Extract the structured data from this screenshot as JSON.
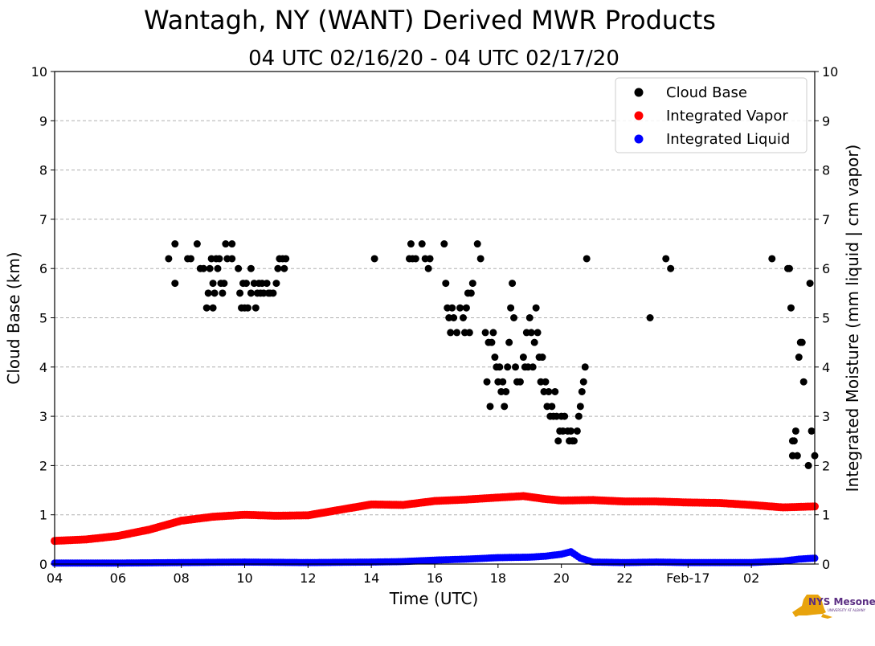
{
  "chart_data": {
    "type": "scatter",
    "title": "Wantagh, NY (WANT) Derived MWR Products",
    "subtitle": "04 UTC 02/16/20 - 04 UTC 02/17/20",
    "xlabel": "Time (UTC)",
    "ylabel_left": "Cloud Base (km)",
    "ylabel_right": "Integrated Moisture (mm liquid | cm vapor)",
    "xlim": [
      0,
      24
    ],
    "ylim": [
      0,
      10
    ],
    "grid": true,
    "legend_position": "top-right",
    "x_ticks": [
      {
        "value": 0,
        "label": "04"
      },
      {
        "value": 2,
        "label": "06"
      },
      {
        "value": 4,
        "label": "08"
      },
      {
        "value": 6,
        "label": "10"
      },
      {
        "value": 8,
        "label": "12"
      },
      {
        "value": 10,
        "label": "14"
      },
      {
        "value": 12,
        "label": "16"
      },
      {
        "value": 14,
        "label": "18"
      },
      {
        "value": 16,
        "label": "20"
      },
      {
        "value": 18,
        "label": "22"
      },
      {
        "value": 20,
        "label": "Feb-17"
      },
      {
        "value": 22,
        "label": "02"
      }
    ],
    "y_ticks": [
      {
        "value": 0,
        "label": "0"
      },
      {
        "value": 1,
        "label": "1"
      },
      {
        "value": 2,
        "label": "2"
      },
      {
        "value": 3,
        "label": "3"
      },
      {
        "value": 4,
        "label": "4"
      },
      {
        "value": 5,
        "label": "5"
      },
      {
        "value": 6,
        "label": "6"
      },
      {
        "value": 7,
        "label": "7"
      },
      {
        "value": 8,
        "label": "8"
      },
      {
        "value": 9,
        "label": "9"
      },
      {
        "value": 10,
        "label": "10"
      }
    ],
    "series": [
      {
        "name": "Cloud Base",
        "color": "#000000",
        "points": [
          [
            3.6,
            6.2
          ],
          [
            3.8,
            6.5
          ],
          [
            3.8,
            5.7
          ],
          [
            4.2,
            6.2
          ],
          [
            4.3,
            6.2
          ],
          [
            4.5,
            6.5
          ],
          [
            4.6,
            6.0
          ],
          [
            4.7,
            6.0
          ],
          [
            4.8,
            5.2
          ],
          [
            4.85,
            5.5
          ],
          [
            4.9,
            6.0
          ],
          [
            4.95,
            6.2
          ],
          [
            5.0,
            5.7
          ],
          [
            5.0,
            5.2
          ],
          [
            5.05,
            5.5
          ],
          [
            5.1,
            6.2
          ],
          [
            5.15,
            6.0
          ],
          [
            5.2,
            6.2
          ],
          [
            5.25,
            5.7
          ],
          [
            5.3,
            5.5
          ],
          [
            5.35,
            5.7
          ],
          [
            5.4,
            6.5
          ],
          [
            5.45,
            6.2
          ],
          [
            5.6,
            6.5
          ],
          [
            5.6,
            6.2
          ],
          [
            5.8,
            6.0
          ],
          [
            5.85,
            5.5
          ],
          [
            5.9,
            5.2
          ],
          [
            5.95,
            5.7
          ],
          [
            6.0,
            5.2
          ],
          [
            6.05,
            5.7
          ],
          [
            6.1,
            5.2
          ],
          [
            6.2,
            6.0
          ],
          [
            6.2,
            5.5
          ],
          [
            6.3,
            5.7
          ],
          [
            6.35,
            5.2
          ],
          [
            6.4,
            5.5
          ],
          [
            6.45,
            5.7
          ],
          [
            6.5,
            5.5
          ],
          [
            6.55,
            5.7
          ],
          [
            6.6,
            5.5
          ],
          [
            6.7,
            5.7
          ],
          [
            6.75,
            5.5
          ],
          [
            6.8,
            5.5
          ],
          [
            6.9,
            5.5
          ],
          [
            7.0,
            5.7
          ],
          [
            7.05,
            6.0
          ],
          [
            7.1,
            6.2
          ],
          [
            7.2,
            6.2
          ],
          [
            7.25,
            6.0
          ],
          [
            7.3,
            6.2
          ],
          [
            10.1,
            6.2
          ],
          [
            11.2,
            6.2
          ],
          [
            11.25,
            6.5
          ],
          [
            11.3,
            6.2
          ],
          [
            11.4,
            6.2
          ],
          [
            11.6,
            6.5
          ],
          [
            11.7,
            6.2
          ],
          [
            11.8,
            6.0
          ],
          [
            11.85,
            6.2
          ],
          [
            12.3,
            6.5
          ],
          [
            12.35,
            5.7
          ],
          [
            12.4,
            5.2
          ],
          [
            12.45,
            5.0
          ],
          [
            12.5,
            4.7
          ],
          [
            12.55,
            5.2
          ],
          [
            12.6,
            5.0
          ],
          [
            12.7,
            4.7
          ],
          [
            12.8,
            5.2
          ],
          [
            12.9,
            5.0
          ],
          [
            12.95,
            4.7
          ],
          [
            13.0,
            5.2
          ],
          [
            13.05,
            5.5
          ],
          [
            13.1,
            4.7
          ],
          [
            13.15,
            5.5
          ],
          [
            13.2,
            5.7
          ],
          [
            13.35,
            6.5
          ],
          [
            13.45,
            6.2
          ],
          [
            13.6,
            4.7
          ],
          [
            13.65,
            3.7
          ],
          [
            13.7,
            4.5
          ],
          [
            13.75,
            3.2
          ],
          [
            13.8,
            4.5
          ],
          [
            13.85,
            4.7
          ],
          [
            13.9,
            4.2
          ],
          [
            13.95,
            4.0
          ],
          [
            14.0,
            3.7
          ],
          [
            14.05,
            4.0
          ],
          [
            14.1,
            3.5
          ],
          [
            14.15,
            3.7
          ],
          [
            14.2,
            3.2
          ],
          [
            14.25,
            3.5
          ],
          [
            14.3,
            4.0
          ],
          [
            14.35,
            4.5
          ],
          [
            14.4,
            5.2
          ],
          [
            14.45,
            5.7
          ],
          [
            14.5,
            5.0
          ],
          [
            14.55,
            4.0
          ],
          [
            14.6,
            3.7
          ],
          [
            14.7,
            3.7
          ],
          [
            14.8,
            4.2
          ],
          [
            14.85,
            4.0
          ],
          [
            14.9,
            4.7
          ],
          [
            14.95,
            4.0
          ],
          [
            15.0,
            5.0
          ],
          [
            15.05,
            4.7
          ],
          [
            15.1,
            4.0
          ],
          [
            15.15,
            4.5
          ],
          [
            15.2,
            5.2
          ],
          [
            15.25,
            4.7
          ],
          [
            15.3,
            4.2
          ],
          [
            15.35,
            3.7
          ],
          [
            15.4,
            4.2
          ],
          [
            15.45,
            3.5
          ],
          [
            15.5,
            3.7
          ],
          [
            15.55,
            3.2
          ],
          [
            15.6,
            3.5
          ],
          [
            15.65,
            3.0
          ],
          [
            15.7,
            3.2
          ],
          [
            15.75,
            3.0
          ],
          [
            15.8,
            3.5
          ],
          [
            15.85,
            3.0
          ],
          [
            15.9,
            2.5
          ],
          [
            15.95,
            2.7
          ],
          [
            16.0,
            3.0
          ],
          [
            16.05,
            2.7
          ],
          [
            16.1,
            3.0
          ],
          [
            16.2,
            2.7
          ],
          [
            16.25,
            2.5
          ],
          [
            16.3,
            2.7
          ],
          [
            16.35,
            2.5
          ],
          [
            16.4,
            2.5
          ],
          [
            16.5,
            2.7
          ],
          [
            16.55,
            3.0
          ],
          [
            16.6,
            3.2
          ],
          [
            16.65,
            3.5
          ],
          [
            16.7,
            3.7
          ],
          [
            16.75,
            4.0
          ],
          [
            16.8,
            6.2
          ],
          [
            18.8,
            5.0
          ],
          [
            19.3,
            6.2
          ],
          [
            19.45,
            6.0
          ],
          [
            22.65,
            6.2
          ],
          [
            23.15,
            6.0
          ],
          [
            23.2,
            6.0
          ],
          [
            23.25,
            5.2
          ],
          [
            23.3,
            2.5
          ],
          [
            23.3,
            2.2
          ],
          [
            23.35,
            2.5
          ],
          [
            23.45,
            2.2
          ],
          [
            23.4,
            2.7
          ],
          [
            23.5,
            4.2
          ],
          [
            23.55,
            4.5
          ],
          [
            23.6,
            4.5
          ],
          [
            23.65,
            3.7
          ],
          [
            23.8,
            2.0
          ],
          [
            23.85,
            5.7
          ],
          [
            23.9,
            2.7
          ],
          [
            24.0,
            2.2
          ]
        ]
      },
      {
        "name": "Integrated Vapor",
        "color": "#ff0000",
        "points": [
          [
            0,
            0.47
          ],
          [
            1,
            0.5
          ],
          [
            2,
            0.57
          ],
          [
            3,
            0.7
          ],
          [
            4,
            0.88
          ],
          [
            5,
            0.96
          ],
          [
            6,
            1.0
          ],
          [
            7,
            0.98
          ],
          [
            8,
            0.99
          ],
          [
            9,
            1.1
          ],
          [
            10,
            1.21
          ],
          [
            11,
            1.2
          ],
          [
            12,
            1.28
          ],
          [
            13,
            1.31
          ],
          [
            14,
            1.35
          ],
          [
            14.8,
            1.38
          ],
          [
            15.5,
            1.32
          ],
          [
            16,
            1.29
          ],
          [
            17,
            1.3
          ],
          [
            18,
            1.27
          ],
          [
            19,
            1.27
          ],
          [
            20,
            1.25
          ],
          [
            21,
            1.24
          ],
          [
            22,
            1.2
          ],
          [
            23,
            1.15
          ],
          [
            24,
            1.17
          ]
        ]
      },
      {
        "name": "Integrated Liquid",
        "color": "#0000ff",
        "points": [
          [
            0,
            0.02
          ],
          [
            2,
            0.02
          ],
          [
            4,
            0.03
          ],
          [
            6,
            0.04
          ],
          [
            8,
            0.03
          ],
          [
            10,
            0.04
          ],
          [
            11,
            0.05
          ],
          [
            12,
            0.08
          ],
          [
            13,
            0.1
          ],
          [
            14,
            0.13
          ],
          [
            15,
            0.14
          ],
          [
            15.5,
            0.16
          ],
          [
            16,
            0.2
          ],
          [
            16.3,
            0.25
          ],
          [
            16.6,
            0.12
          ],
          [
            17,
            0.04
          ],
          [
            18,
            0.03
          ],
          [
            19,
            0.04
          ],
          [
            20,
            0.03
          ],
          [
            22,
            0.03
          ],
          [
            23,
            0.06
          ],
          [
            23.5,
            0.1
          ],
          [
            24,
            0.12
          ]
        ]
      }
    ]
  },
  "logo": {
    "text": "NYS Mesonet",
    "subtext": "UNIVERSITY AT ALBANY",
    "color": "#e8a30c",
    "text_color": "#5a2d82"
  }
}
